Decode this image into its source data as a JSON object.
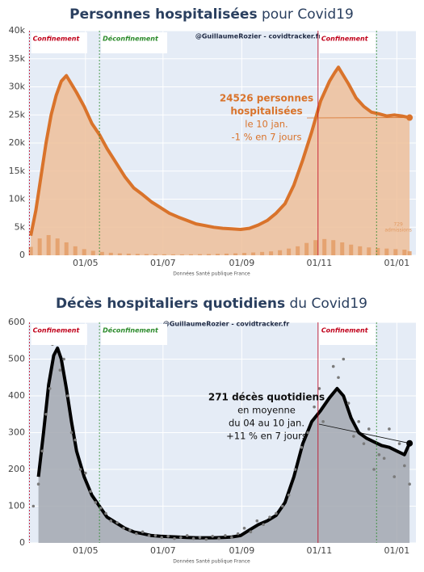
{
  "chart_data": [
    {
      "type": "line",
      "title_parts": [
        "Personnes hospitalisées",
        " pour Covid19"
      ],
      "watermark": "@GuillaumeRozier - covidtracker.fr",
      "source": "Données Santé publique France",
      "annotation": [
        "24526 personnes",
        "hospitalisées",
        "le 10 jan.",
        "-1 % en 7 jours"
      ],
      "annotation_bold_lines": 2,
      "annotation_color": "#d9732b",
      "bar_note": "admissions",
      "xlim": [
        76,
        381
      ],
      "xticks": [
        {
          "value": 121,
          "label": "01/05"
        },
        {
          "value": 182,
          "label": "01/07"
        },
        {
          "value": 244,
          "label": "01/09"
        },
        {
          "value": 305,
          "label": "01/11"
        },
        {
          "value": 366,
          "label": "01/01"
        }
      ],
      "ylim": [
        0,
        40000
      ],
      "yticks": [
        0,
        {
          "value": 5000,
          "label": "5k"
        },
        {
          "value": 10000,
          "label": "10k"
        },
        {
          "value": 15000,
          "label": "15k"
        },
        {
          "value": 20000,
          "label": "20k"
        },
        {
          "value": 25000,
          "label": "25k"
        },
        {
          "value": 30000,
          "label": "30k"
        },
        {
          "value": 35000,
          "label": "35k"
        },
        {
          "value": 40000,
          "label": "40k"
        }
      ],
      "grid": true,
      "events": [
        {
          "x": 77,
          "label": "Confinement",
          "color": "#c0001a"
        },
        {
          "x": 132,
          "label": "Déconfinement",
          "color": "#2a8a2a"
        },
        {
          "x": 304,
          "label": "Confinement",
          "color": "#c0001a"
        },
        {
          "x": 350,
          "color": "#2a8a2a"
        }
      ],
      "series": [
        {
          "kind": "area",
          "color": "#d9732b",
          "fill": "#efc09a",
          "x": [
            78,
            82,
            86,
            90,
            94,
            98,
            102,
            106,
            110,
            114,
            120,
            126,
            132,
            138,
            145,
            152,
            159,
            166,
            173,
            180,
            187,
            194,
            201,
            208,
            215,
            222,
            229,
            236,
            243,
            250,
            257,
            264,
            271,
            278,
            285,
            292,
            299,
            306,
            313,
            317,
            320,
            324,
            328,
            334,
            340,
            346,
            352,
            358,
            364,
            370,
            376
          ],
          "values": [
            3500,
            8000,
            14000,
            20000,
            25000,
            28500,
            31000,
            32000,
            30500,
            29000,
            26500,
            23500,
            21500,
            19000,
            16500,
            14000,
            12000,
            10800,
            9500,
            8500,
            7500,
            6800,
            6200,
            5600,
            5300,
            5000,
            4800,
            4700,
            4600,
            4800,
            5400,
            6200,
            7500,
            9200,
            12500,
            17000,
            22000,
            27500,
            31000,
            32500,
            33500,
            32000,
            30500,
            28000,
            26500,
            25500,
            25200,
            24800,
            25000,
            24800,
            24526
          ]
        },
        {
          "kind": "bar",
          "color": "#e29a62",
          "x": [
            78,
            85,
            92,
            99,
            106,
            113,
            120,
            127,
            134,
            141,
            148,
            155,
            162,
            169,
            176,
            183,
            190,
            197,
            204,
            211,
            218,
            225,
            232,
            239,
            246,
            253,
            260,
            267,
            274,
            281,
            288,
            295,
            302,
            309,
            316,
            323,
            330,
            337,
            344,
            351,
            358,
            365,
            372,
            376
          ],
          "values": [
            1500,
            3000,
            3600,
            3000,
            2300,
            1600,
            1100,
            800,
            600,
            450,
            350,
            300,
            250,
            220,
            200,
            180,
            170,
            170,
            180,
            200,
            220,
            260,
            300,
            350,
            420,
            500,
            600,
            700,
            900,
            1200,
            1600,
            2200,
            2700,
            2900,
            2700,
            2300,
            1900,
            1600,
            1400,
            1300,
            1200,
            1100,
            1000,
            729
          ]
        }
      ]
    },
    {
      "type": "line",
      "title_parts": [
        "Décès hospitaliers quotidiens",
        " du Covid19"
      ],
      "watermark": "@GuillaumeRozier - covidtracker.fr",
      "source": "Données Santé publique France",
      "annotation": [
        "271 décès quotidiens",
        "en moyenne",
        "du 04 au 10 jan.",
        "+11 % en 7 jours"
      ],
      "annotation_bold_lines": 1,
      "annotation_color": "#111111",
      "xlim": [
        76,
        381
      ],
      "xticks": [
        {
          "value": 121,
          "label": "01/05"
        },
        {
          "value": 182,
          "label": "01/07"
        },
        {
          "value": 244,
          "label": "01/09"
        },
        {
          "value": 305,
          "label": "01/11"
        },
        {
          "value": 366,
          "label": "01/01"
        }
      ],
      "ylim": [
        0,
        600
      ],
      "yticks": [
        0,
        100,
        200,
        300,
        400,
        500,
        600
      ],
      "grid": true,
      "events": [
        {
          "x": 77,
          "label": "Confinement",
          "color": "#c0001a"
        },
        {
          "x": 132,
          "label": "Déconfinement",
          "color": "#2a8a2a"
        },
        {
          "x": 304,
          "label": "Confinement",
          "color": "#c0001a"
        },
        {
          "x": 350,
          "color": "#2a8a2a"
        }
      ],
      "series": [
        {
          "kind": "area",
          "color": "#000000",
          "fill": "#a3a8b0",
          "x": [
            84,
            88,
            92,
            96,
            99,
            102,
            106,
            110,
            114,
            120,
            126,
            132,
            138,
            145,
            152,
            159,
            166,
            173,
            180,
            187,
            194,
            201,
            208,
            215,
            222,
            229,
            236,
            243,
            250,
            257,
            264,
            271,
            278,
            285,
            292,
            299,
            306,
            313,
            319,
            324,
            330,
            336,
            342,
            348,
            354,
            360,
            366,
            372,
            376
          ],
          "values": [
            180,
            300,
            430,
            510,
            530,
            500,
            420,
            330,
            250,
            180,
            130,
            100,
            70,
            55,
            40,
            30,
            25,
            20,
            18,
            17,
            16,
            15,
            14,
            14,
            14,
            15,
            16,
            20,
            35,
            50,
            60,
            75,
            110,
            180,
            270,
            330,
            360,
            395,
            420,
            400,
            340,
            300,
            285,
            275,
            265,
            260,
            250,
            240,
            271
          ]
        },
        {
          "kind": "scatter",
          "color": "#7a7a7a",
          "x": [
            80,
            84,
            87,
            90,
            93,
            95,
            98,
            101,
            104,
            107,
            110,
            113,
            117,
            121,
            125,
            129,
            133,
            137,
            141,
            146,
            151,
            156,
            161,
            166,
            171,
            176,
            181,
            186,
            191,
            196,
            201,
            206,
            211,
            216,
            221,
            226,
            231,
            236,
            241,
            246,
            251,
            256,
            261,
            266,
            271,
            276,
            281,
            286,
            291,
            296,
            301,
            305,
            308,
            312,
            316,
            320,
            324,
            328,
            332,
            336,
            340,
            344,
            348,
            352,
            356,
            360,
            364,
            368,
            372,
            376
          ],
          "values": [
            100,
            160,
            250,
            350,
            420,
            540,
            560,
            470,
            500,
            400,
            300,
            280,
            200,
            190,
            140,
            110,
            95,
            80,
            60,
            55,
            40,
            35,
            25,
            30,
            20,
            20,
            15,
            18,
            12,
            15,
            20,
            12,
            15,
            10,
            18,
            12,
            20,
            15,
            25,
            40,
            30,
            60,
            50,
            70,
            80,
            100,
            130,
            200,
            260,
            300,
            370,
            420,
            330,
            550,
            480,
            450,
            500,
            380,
            290,
            330,
            270,
            310,
            200,
            240,
            230,
            310,
            180,
            270,
            210,
            160
          ]
        }
      ]
    }
  ]
}
